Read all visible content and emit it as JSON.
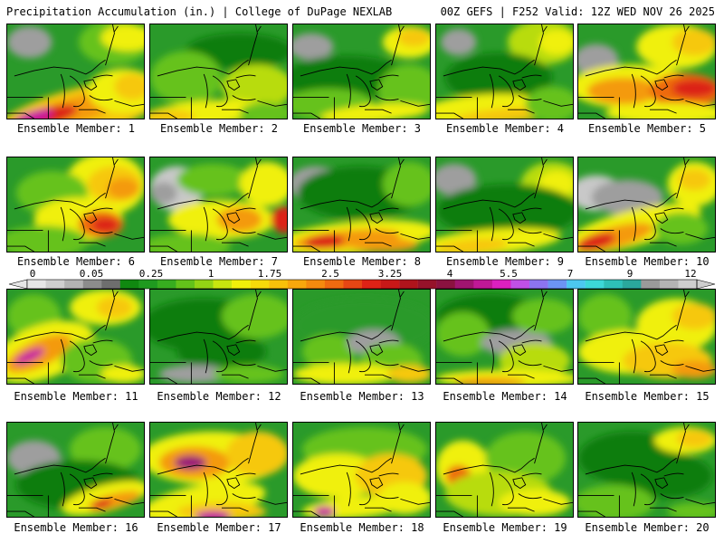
{
  "header": {
    "left": "Precipitation Accumulation (in.) | College of DuPage NEXLAB",
    "right": "00Z GEFS | F252 Valid: 12Z WED NOV 26 2025"
  },
  "colorbar": {
    "labels": [
      "0",
      "0.05",
      "0.25",
      "1",
      "1.75",
      "2.5",
      "3.25",
      "4",
      "5.5",
      "7",
      "9",
      "12"
    ],
    "colors": [
      "#e6e6e6",
      "#cfcfcf",
      "#b3b3b3",
      "#8c8c8c",
      "#6e6e6e",
      "#108810",
      "#1f9a1f",
      "#37ad1f",
      "#63c21a",
      "#93d414",
      "#c7e60f",
      "#f0f00a",
      "#f6da0a",
      "#f8c10a",
      "#f8a70c",
      "#f48a0e",
      "#ee6a10",
      "#e64614",
      "#de2216",
      "#c81818",
      "#b0141c",
      "#96122a",
      "#8a1240",
      "#a01470",
      "#c01896",
      "#dc20c0",
      "#c050e6",
      "#8c74f0",
      "#6c94f4",
      "#4cc8f0",
      "#3cd8d8",
      "#2ec0b8",
      "#2aa89c",
      "#9a9a9a",
      "#b4b4b4",
      "#cecece"
    ]
  },
  "members": [
    {
      "label": "Ensemble Member: 1"
    },
    {
      "label": "Ensemble Member: 2"
    },
    {
      "label": "Ensemble Member: 3"
    },
    {
      "label": "Ensemble Member: 4"
    },
    {
      "label": "Ensemble Member: 5"
    },
    {
      "label": "Ensemble Member: 6"
    },
    {
      "label": "Ensemble Member: 7"
    },
    {
      "label": "Ensemble Member: 8"
    },
    {
      "label": "Ensemble Member: 9"
    },
    {
      "label": "Ensemble Member: 10"
    },
    {
      "label": "Ensemble Member: 11"
    },
    {
      "label": "Ensemble Member: 12"
    },
    {
      "label": "Ensemble Member: 13"
    },
    {
      "label": "Ensemble Member: 14"
    },
    {
      "label": "Ensemble Member: 15"
    },
    {
      "label": "Ensemble Member: 16"
    },
    {
      "label": "Ensemble Member: 17"
    },
    {
      "label": "Ensemble Member: 18"
    },
    {
      "label": "Ensemble Member: 19"
    },
    {
      "label": "Ensemble Member: 20"
    }
  ]
}
